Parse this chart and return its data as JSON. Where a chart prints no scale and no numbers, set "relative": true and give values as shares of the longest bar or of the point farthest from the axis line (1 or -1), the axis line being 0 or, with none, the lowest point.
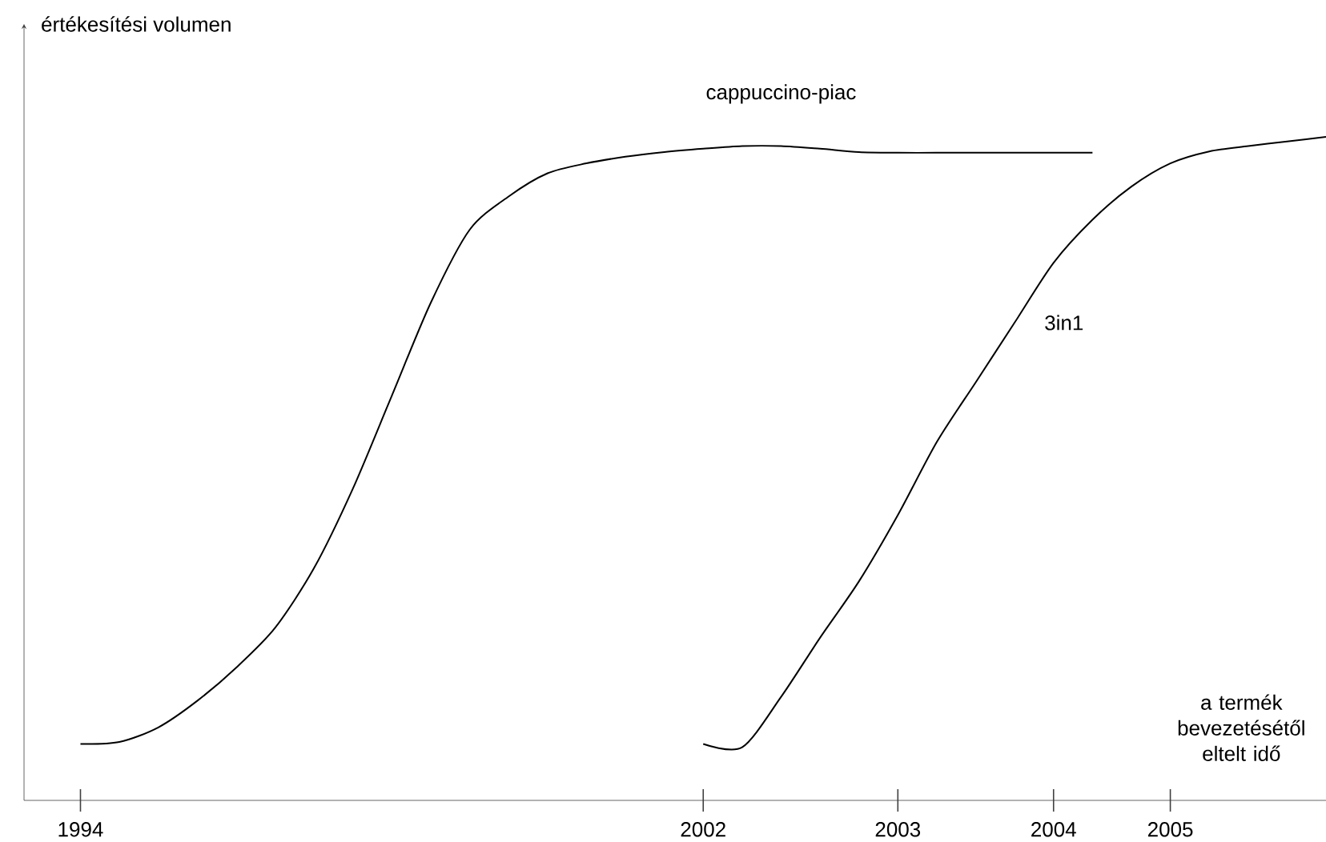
{
  "chart_data": {
    "type": "line",
    "relative": true,
    "annotations": [
      "értékesítési volumen"
    ],
    "xlabel": "a termék bevezetésétől eltelt idő",
    "categories": [
      "1994",
      null,
      null,
      null,
      null,
      null,
      null,
      null,
      null,
      null,
      null,
      null,
      null,
      null,
      null,
      null,
      "2002",
      null,
      null,
      null,
      null,
      "2003",
      null,
      null,
      null,
      "2004",
      null,
      null,
      "2005",
      null,
      null,
      null,
      null
    ],
    "line_style": "solid",
    "series": [
      {
        "name": "cappuccino-piac",
        "color": "#000000",
        "values": [
          0.085,
          0.088,
          0.11,
          0.15,
          0.2,
          0.26,
          0.35,
          0.47,
          0.61,
          0.75,
          0.86,
          0.91,
          0.945,
          0.96,
          0.97,
          0.977,
          0.982,
          0.986,
          0.986,
          0.982,
          0.977,
          0.976,
          0.976,
          0.976,
          0.976,
          0.976,
          0.976,
          null,
          null,
          null,
          null,
          null,
          null
        ]
      },
      {
        "name": "3in1",
        "color": "#000000",
        "values": [
          null,
          null,
          null,
          null,
          null,
          null,
          null,
          null,
          null,
          null,
          null,
          null,
          null,
          null,
          null,
          null,
          0.085,
          0.08,
          0.156,
          0.245,
          0.33,
          0.43,
          0.54,
          0.63,
          0.72,
          0.81,
          0.875,
          0.925,
          0.96,
          0.978,
          0.986,
          0.993,
          1
        ]
      }
    ]
  }
}
